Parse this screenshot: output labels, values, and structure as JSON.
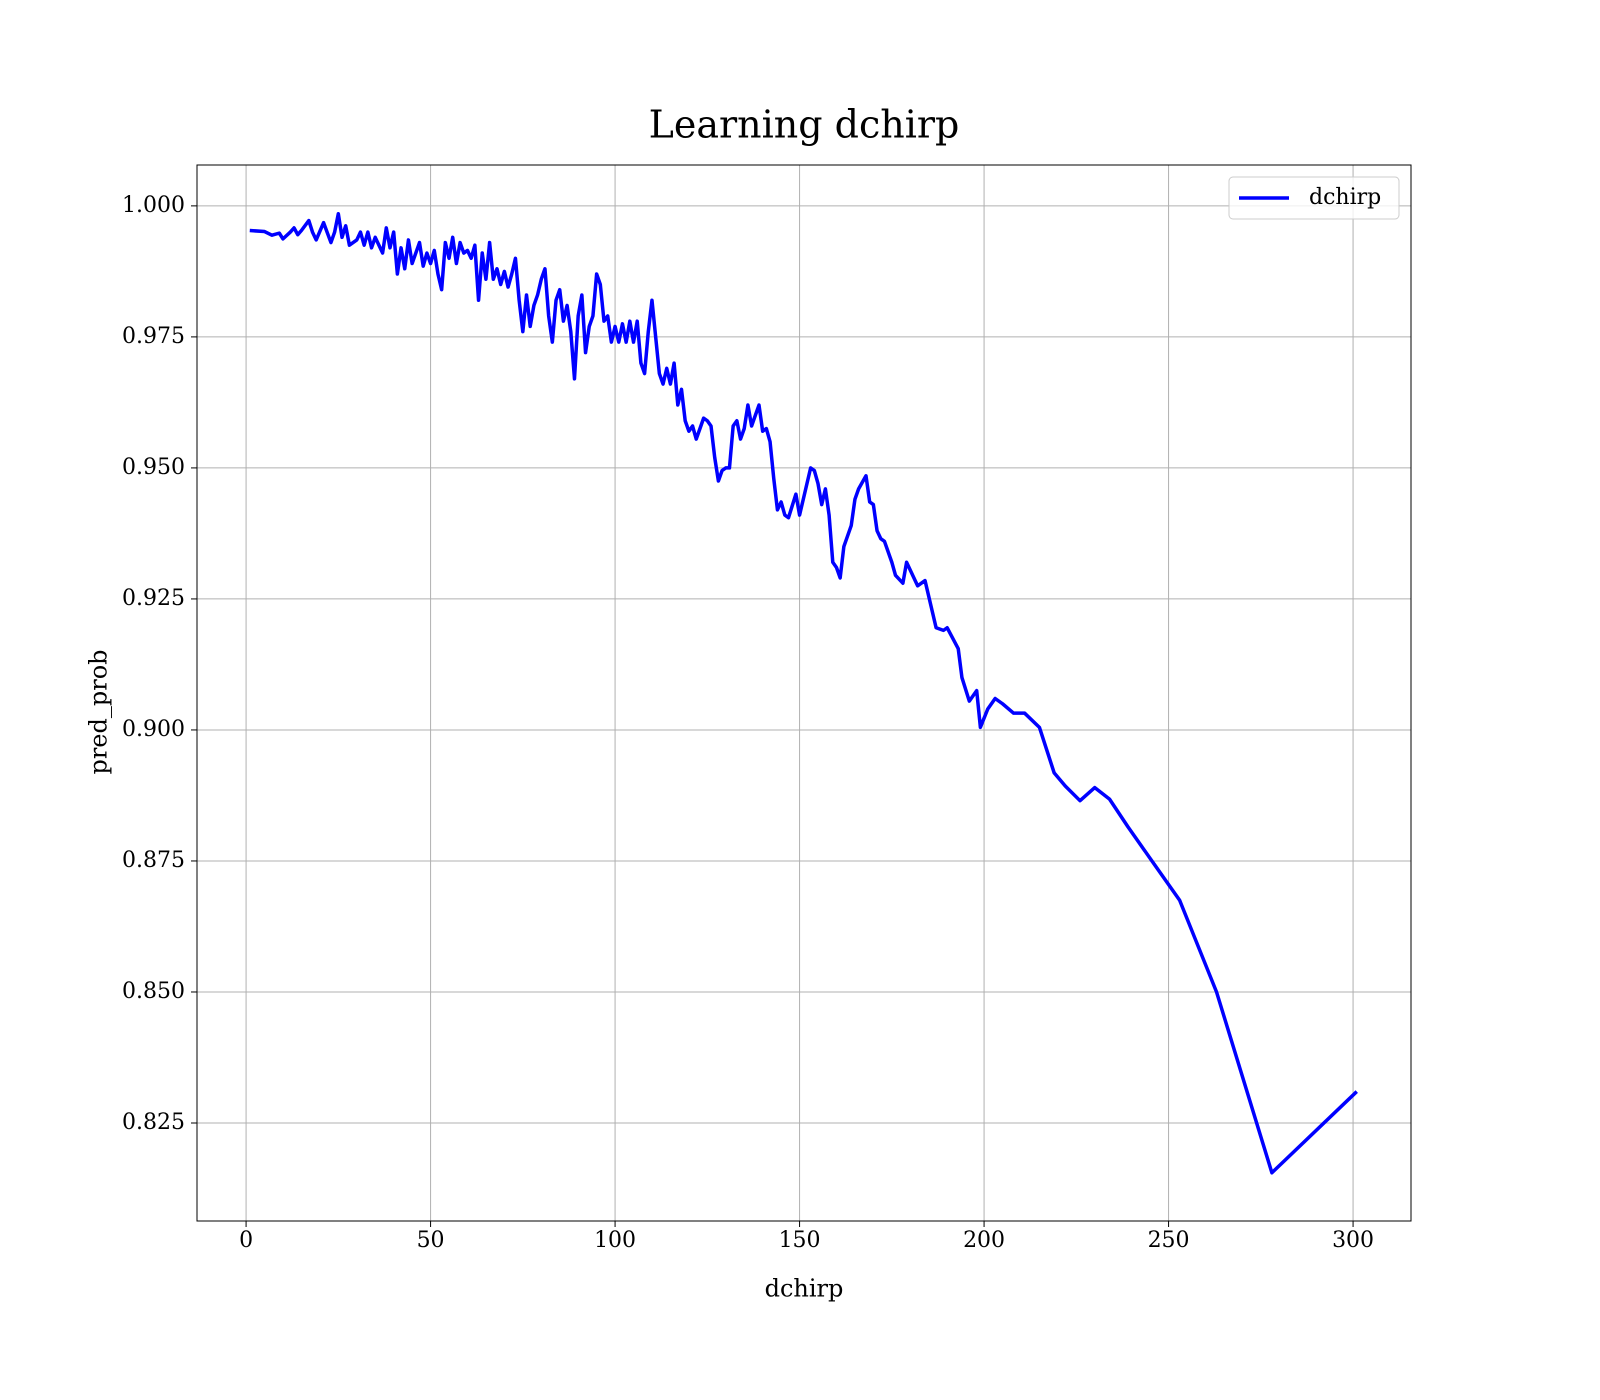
{
  "chart_data": {
    "type": "line",
    "title": "Learning dchirp",
    "x_label": "dchirp",
    "y_label": "pred_prob",
    "x": [
      1,
      5,
      7,
      9,
      10,
      12,
      13,
      14,
      15,
      17,
      18,
      19,
      21,
      23,
      24,
      25,
      26,
      27,
      28,
      30,
      31,
      32,
      33,
      34,
      35,
      37,
      38,
      39,
      40,
      41,
      42,
      43,
      44,
      45,
      47,
      48,
      49,
      50,
      51,
      52,
      53,
      54,
      55,
      56,
      57,
      58,
      59,
      60,
      61,
      62,
      63,
      64,
      65,
      66,
      67,
      68,
      69,
      70,
      71,
      72,
      73,
      74,
      75,
      76,
      77,
      78,
      79,
      80,
      81,
      82,
      83,
      84,
      85,
      86,
      87,
      88,
      89,
      90,
      91,
      92,
      93,
      94,
      95,
      96,
      97,
      98,
      99,
      100,
      101,
      102,
      103,
      104,
      105,
      106,
      107,
      108,
      109,
      110,
      111,
      112,
      113,
      114,
      115,
      116,
      117,
      118,
      119,
      120,
      121,
      122,
      123,
      124,
      125,
      126,
      127,
      128,
      129,
      130,
      131,
      132,
      133,
      134,
      135,
      136,
      137,
      138,
      139,
      140,
      141,
      142,
      143,
      144,
      145,
      146,
      147,
      149,
      150,
      151,
      153,
      154,
      155,
      156,
      157,
      158,
      159,
      160,
      161,
      162,
      164,
      165,
      166,
      168,
      169,
      170,
      171,
      172,
      173,
      175,
      176,
      178,
      179,
      181,
      182,
      184,
      186,
      187,
      189,
      190,
      193,
      194,
      196,
      198,
      199,
      201,
      203,
      205,
      208,
      211,
      215,
      219,
      222,
      226,
      230,
      234,
      239,
      246,
      253,
      263,
      278,
      301
    ],
    "series": [
      {
        "name": "dchirp",
        "color": "#0000ff",
        "values": [
          0.9953,
          0.9951,
          0.9944,
          0.9948,
          0.9937,
          0.995,
          0.9958,
          0.9945,
          0.9953,
          0.9972,
          0.995,
          0.9935,
          0.9968,
          0.993,
          0.995,
          0.9985,
          0.994,
          0.9962,
          0.9925,
          0.9935,
          0.995,
          0.9925,
          0.995,
          0.992,
          0.994,
          0.991,
          0.9958,
          0.992,
          0.995,
          0.987,
          0.992,
          0.988,
          0.9935,
          0.989,
          0.993,
          0.9885,
          0.991,
          0.989,
          0.9915,
          0.987,
          0.984,
          0.993,
          0.99,
          0.994,
          0.989,
          0.993,
          0.991,
          0.9915,
          0.99,
          0.9925,
          0.982,
          0.991,
          0.986,
          0.993,
          0.986,
          0.988,
          0.985,
          0.9875,
          0.9845,
          0.987,
          0.99,
          0.982,
          0.976,
          0.983,
          0.977,
          0.981,
          0.983,
          0.986,
          0.988,
          0.979,
          0.974,
          0.982,
          0.984,
          0.978,
          0.981,
          0.976,
          0.967,
          0.979,
          0.983,
          0.972,
          0.977,
          0.979,
          0.987,
          0.985,
          0.978,
          0.979,
          0.974,
          0.977,
          0.974,
          0.9775,
          0.974,
          0.978,
          0.974,
          0.978,
          0.97,
          0.968,
          0.976,
          0.982,
          0.975,
          0.968,
          0.966,
          0.969,
          0.966,
          0.97,
          0.962,
          0.965,
          0.959,
          0.957,
          0.958,
          0.9555,
          0.9575,
          0.9595,
          0.959,
          0.958,
          0.952,
          0.9475,
          0.9495,
          0.95,
          0.95,
          0.958,
          0.959,
          0.9555,
          0.9575,
          0.962,
          0.958,
          0.96,
          0.962,
          0.957,
          0.9575,
          0.955,
          0.948,
          0.942,
          0.9435,
          0.941,
          0.9405,
          0.945,
          0.941,
          0.944,
          0.95,
          0.9495,
          0.947,
          0.943,
          0.946,
          0.941,
          0.932,
          0.931,
          0.929,
          0.935,
          0.939,
          0.944,
          0.946,
          0.9485,
          0.9435,
          0.943,
          0.938,
          0.9365,
          0.936,
          0.932,
          0.9295,
          0.928,
          0.932,
          0.929,
          0.9275,
          0.9285,
          0.9225,
          0.9195,
          0.919,
          0.9195,
          0.9155,
          0.91,
          0.9055,
          0.9075,
          0.9005,
          0.904,
          0.906,
          0.905,
          0.9032,
          0.9032,
          0.9005,
          0.8918,
          0.8893,
          0.8865,
          0.889,
          0.8868,
          0.8815,
          0.8745,
          0.8675,
          0.85,
          0.8155,
          0.831
        ]
      }
    ],
    "xlim": [
      -13.3,
      315.7
    ],
    "xticks": [
      0,
      50,
      100,
      150,
      200,
      250,
      300
    ],
    "ylim": [
      0.8063,
      1.0078
    ],
    "yticks": [
      {
        "value": 0.825,
        "label": "0.825"
      },
      {
        "value": 0.85,
        "label": "0.850"
      },
      {
        "value": 0.875,
        "label": "0.875"
      },
      {
        "value": 0.9,
        "label": "0.900"
      },
      {
        "value": 0.925,
        "label": "0.925"
      },
      {
        "value": 0.95,
        "label": "0.950"
      },
      {
        "value": 0.975,
        "label": "0.975"
      },
      {
        "value": 1.0,
        "label": "1.000"
      }
    ],
    "grid": true,
    "legend": "upper right"
  }
}
